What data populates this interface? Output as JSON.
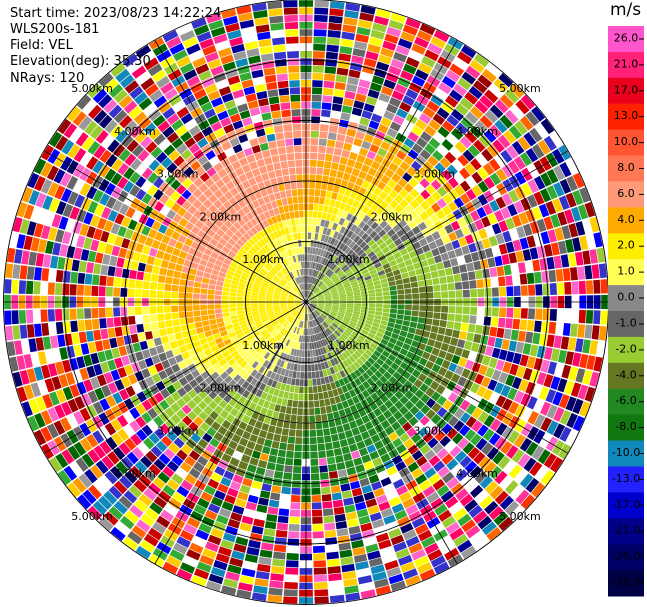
{
  "header": {
    "start_time": "Start time: 2023/08/23 14:22:24",
    "instrument": "WLS200s-181",
    "field": "Field: VEL",
    "elevation": "Elevation(deg): 35.30",
    "nrays": "NRays: 120"
  },
  "chart_data": {
    "type": "ppi",
    "field": "VEL",
    "units": "m/s",
    "n_rays": 120,
    "elevation_deg": 35.3,
    "range_rings_km": [
      1,
      2,
      3,
      4,
      5
    ],
    "ring_labels": [
      "1.00km",
      "2.00km",
      "3.00km",
      "4.00km",
      "5.00km"
    ],
    "colorbar": {
      "label": "m/s",
      "ticks": [
        "26.0",
        "21.0",
        "17.0",
        "13.0",
        "10.0",
        "8.0",
        "6.0",
        "4.0",
        "2.0",
        "1.0",
        "0.0",
        "-1.0",
        "-2.0",
        "-4.0",
        "-6.0",
        "-8.0",
        "-10.0",
        "-13.0",
        "-17.0",
        "-21.0",
        "-26.0",
        "-30.0"
      ],
      "colors": [
        "#ff55cc",
        "#ff2277",
        "#e8001c",
        "#ff2200",
        "#ff5533",
        "#ff7755",
        "#ff9977",
        "#ffaa00",
        "#ffee00",
        "#ffff55",
        "#888888",
        "#666666",
        "#99cc33",
        "#667722",
        "#228822",
        "#117711",
        "#1188bb",
        "#2222ff",
        "#0000cc",
        "#000088",
        "#000066",
        "#000044"
      ]
    },
    "velocity_pattern": {
      "clean_range_km": 2.55,
      "north_band": "positive (2.0 to 6.0 m/s)",
      "south_band": "negative (-2.0 to -8.0 m/s)",
      "center_swirl": "near-zero (-1.0 to 1.0 m/s)",
      "far_range": "noise"
    }
  }
}
